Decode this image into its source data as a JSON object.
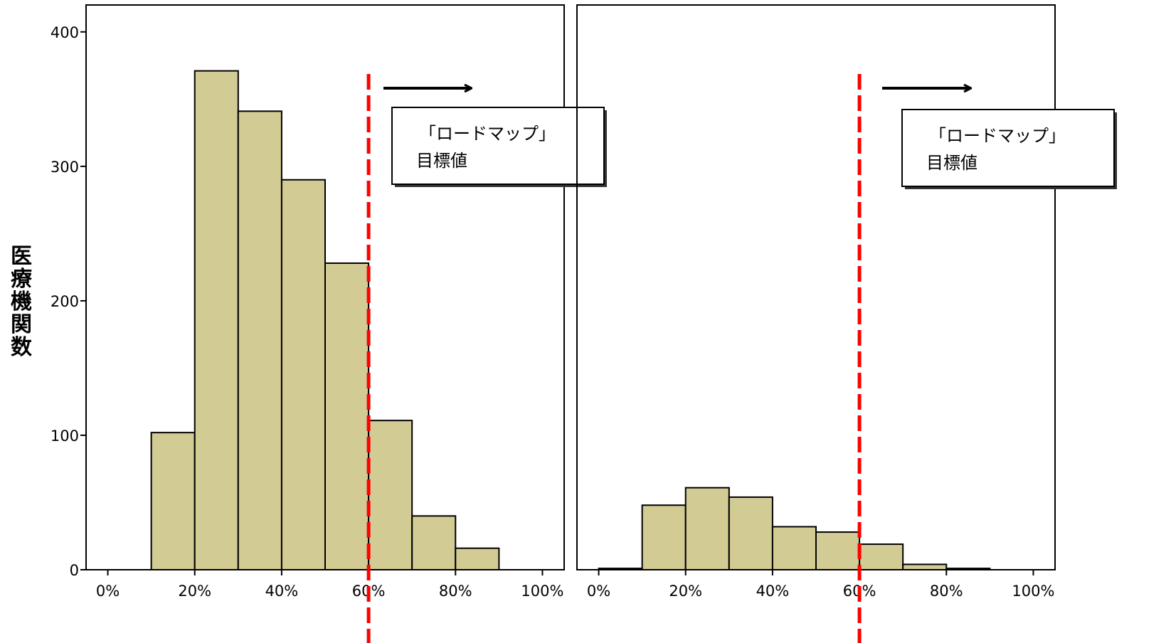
{
  "chart_data": [
    {
      "type": "bar",
      "panel": "left",
      "xlabel": "",
      "ylabel": "医療機関数",
      "bin_edges": [
        0,
        10,
        20,
        30,
        40,
        50,
        60,
        70,
        80,
        90,
        100
      ],
      "values": [
        0,
        102,
        371,
        341,
        290,
        228,
        111,
        40,
        16,
        0
      ],
      "xticks": [
        "0%",
        "20%",
        "40%",
        "60%",
        "80%",
        "100%"
      ],
      "yticks": [
        "0",
        "100",
        "200",
        "300",
        "400"
      ],
      "xlim": [
        -5,
        105
      ],
      "ylim": [
        0,
        420
      ],
      "reference_line": {
        "x": 60,
        "style": "dashed",
        "color": "#ff0000"
      },
      "annotation": {
        "line1": "「ロードマップ」",
        "line2": "目標値"
      },
      "bar_color": "#d2cb94"
    },
    {
      "type": "bar",
      "panel": "right",
      "xlabel": "",
      "bin_edges": [
        0,
        10,
        20,
        30,
        40,
        50,
        60,
        70,
        80,
        90,
        100
      ],
      "values": [
        1,
        48,
        61,
        54,
        32,
        28,
        19,
        4,
        1,
        0
      ],
      "xticks": [
        "0%",
        "20%",
        "40%",
        "60%",
        "80%",
        "100%"
      ],
      "xlim": [
        -5,
        105
      ],
      "ylim": [
        0,
        420
      ],
      "reference_line": {
        "x": 60,
        "style": "dashed",
        "color": "#ff0000"
      },
      "annotation": {
        "line1": "「ロードマップ」",
        "line2": "目標値"
      },
      "bar_color": "#d2cb94"
    }
  ]
}
